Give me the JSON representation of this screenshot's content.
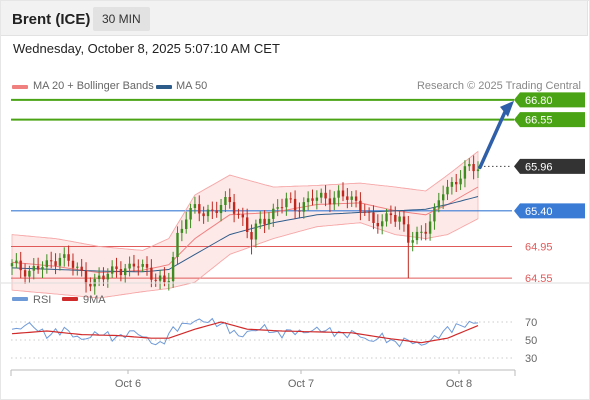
{
  "header": {
    "title": "Brent (ICE)",
    "interval": "30 MIN"
  },
  "timestamp": "Wednesday, October 8, 2025 5:07:10 AM CET",
  "legend": {
    "items": [
      {
        "label": "MA 20 + Bollinger Bands",
        "color": "#f08080"
      },
      {
        "label": "MA 50",
        "color": "#2e5c8a"
      }
    ],
    "credit": "Research © 2025 Trading Central"
  },
  "colors": {
    "up": "#3c8c1f",
    "down": "#c0281e",
    "target": "#4aa314",
    "pivot": "#3a7bd5",
    "support": "#e05a5a",
    "arrow": "#2f5fa8",
    "rsi": "#6f9ad8",
    "rsi_ma": "#d02a2a"
  },
  "chart_data": {
    "type": "candlestick",
    "x_ticks": [
      "Oct 6",
      "Oct 7",
      "Oct 8"
    ],
    "y_range": [
      64.3,
      67.0
    ],
    "levels": [
      {
        "value": 66.8,
        "label": "66.80",
        "kind": "target"
      },
      {
        "value": 66.55,
        "label": "66.55",
        "kind": "target"
      },
      {
        "value": 65.96,
        "label": "65.96",
        "kind": "last"
      },
      {
        "value": 65.4,
        "label": "65.40",
        "kind": "pivot"
      },
      {
        "value": 64.95,
        "label": "64.95",
        "kind": "support"
      },
      {
        "value": 64.55,
        "label": "64.55",
        "kind": "support"
      }
    ],
    "price_path": [
      [
        0,
        64.7
      ],
      [
        4,
        64.65
      ],
      [
        8,
        64.7
      ],
      [
        11,
        64.85
      ],
      [
        14,
        64.7
      ],
      [
        17,
        64.55
      ],
      [
        19,
        64.5
      ],
      [
        21,
        64.55
      ],
      [
        24,
        64.7
      ],
      [
        27,
        64.65
      ],
      [
        29,
        64.72
      ],
      [
        31,
        64.68
      ],
      [
        33,
        64.55
      ],
      [
        35,
        64.45
      ],
      [
        36,
        64.55
      ],
      [
        38,
        65.1
      ],
      [
        40,
        65.35
      ],
      [
        42,
        65.4
      ],
      [
        44,
        65.38
      ],
      [
        46,
        65.42
      ],
      [
        48,
        65.45
      ],
      [
        50,
        65.5
      ],
      [
        53,
        65.3
      ],
      [
        55,
        65.05
      ],
      [
        57,
        65.25
      ],
      [
        59,
        65.35
      ],
      [
        61,
        65.45
      ],
      [
        63,
        65.5
      ],
      [
        65,
        65.45
      ],
      [
        67,
        65.5
      ],
      [
        69,
        65.55
      ],
      [
        71,
        65.55
      ],
      [
        73,
        65.58
      ],
      [
        75,
        65.6
      ],
      [
        77,
        65.55
      ],
      [
        79,
        65.5
      ],
      [
        81,
        65.45
      ],
      [
        83,
        65.2
      ],
      [
        85,
        65.25
      ],
      [
        87,
        65.4
      ],
      [
        89,
        65.3
      ],
      [
        91,
        65.0
      ],
      [
        93,
        65.1
      ],
      [
        95,
        65.2
      ],
      [
        97,
        65.35
      ],
      [
        99,
        65.65
      ],
      [
        101,
        65.75
      ],
      [
        103,
        65.85
      ],
      [
        105,
        65.92
      ],
      [
        107,
        65.96
      ]
    ],
    "ma20": [
      [
        0,
        64.75
      ],
      [
        10,
        64.7
      ],
      [
        20,
        64.62
      ],
      [
        30,
        64.65
      ],
      [
        36,
        64.72
      ],
      [
        42,
        65.05
      ],
      [
        50,
        65.35
      ],
      [
        60,
        65.38
      ],
      [
        70,
        65.48
      ],
      [
        80,
        65.5
      ],
      [
        88,
        65.4
      ],
      [
        95,
        65.35
      ],
      [
        100,
        65.48
      ],
      [
        107,
        65.7
      ]
    ],
    "ma50": [
      [
        0,
        64.68
      ],
      [
        10,
        64.66
      ],
      [
        20,
        64.64
      ],
      [
        30,
        64.63
      ],
      [
        36,
        64.66
      ],
      [
        42,
        64.85
      ],
      [
        50,
        65.1
      ],
      [
        60,
        65.25
      ],
      [
        70,
        65.35
      ],
      [
        80,
        65.38
      ],
      [
        88,
        65.4
      ],
      [
        95,
        65.42
      ],
      [
        100,
        65.48
      ],
      [
        107,
        65.58
      ]
    ],
    "bb_upper": [
      [
        0,
        65.1
      ],
      [
        10,
        65.05
      ],
      [
        20,
        64.95
      ],
      [
        30,
        64.9
      ],
      [
        36,
        65.05
      ],
      [
        42,
        65.6
      ],
      [
        50,
        65.85
      ],
      [
        60,
        65.7
      ],
      [
        70,
        65.72
      ],
      [
        80,
        65.75
      ],
      [
        88,
        65.7
      ],
      [
        95,
        65.65
      ],
      [
        100,
        65.85
      ],
      [
        107,
        66.15
      ]
    ],
    "bb_lower": [
      [
        0,
        64.4
      ],
      [
        10,
        64.35
      ],
      [
        20,
        64.3
      ],
      [
        30,
        64.38
      ],
      [
        36,
        64.42
      ],
      [
        42,
        64.5
      ],
      [
        50,
        64.85
      ],
      [
        60,
        65.05
      ],
      [
        70,
        65.2
      ],
      [
        80,
        65.25
      ],
      [
        88,
        65.1
      ],
      [
        95,
        65.05
      ],
      [
        100,
        65.1
      ],
      [
        107,
        65.3
      ]
    ],
    "rsi": {
      "legend": [
        "RSI",
        "9MA"
      ],
      "ticks": [
        70,
        50,
        30
      ],
      "values": [
        [
          0,
          60
        ],
        [
          4,
          68
        ],
        [
          8,
          55
        ],
        [
          12,
          62
        ],
        [
          16,
          50
        ],
        [
          20,
          58
        ],
        [
          24,
          52
        ],
        [
          28,
          60
        ],
        [
          32,
          48
        ],
        [
          34,
          44
        ],
        [
          37,
          62
        ],
        [
          40,
          68
        ],
        [
          43,
          72
        ],
        [
          46,
          70
        ],
        [
          49,
          66
        ],
        [
          52,
          54
        ],
        [
          55,
          60
        ],
        [
          58,
          64
        ],
        [
          61,
          56
        ],
        [
          64,
          60
        ],
        [
          67,
          58
        ],
        [
          70,
          62
        ],
        [
          73,
          60
        ],
        [
          76,
          56
        ],
        [
          79,
          58
        ],
        [
          82,
          48
        ],
        [
          85,
          54
        ],
        [
          88,
          46
        ],
        [
          91,
          50
        ],
        [
          94,
          44
        ],
        [
          97,
          52
        ],
        [
          100,
          62
        ],
        [
          103,
          66
        ],
        [
          107,
          70
        ]
      ],
      "ma9": [
        [
          0,
          57
        ],
        [
          8,
          60
        ],
        [
          16,
          56
        ],
        [
          24,
          55
        ],
        [
          32,
          52
        ],
        [
          36,
          52
        ],
        [
          42,
          62
        ],
        [
          48,
          70
        ],
        [
          54,
          62
        ],
        [
          62,
          60
        ],
        [
          70,
          59
        ],
        [
          78,
          58
        ],
        [
          86,
          52
        ],
        [
          94,
          47
        ],
        [
          100,
          52
        ],
        [
          107,
          66
        ]
      ]
    }
  }
}
